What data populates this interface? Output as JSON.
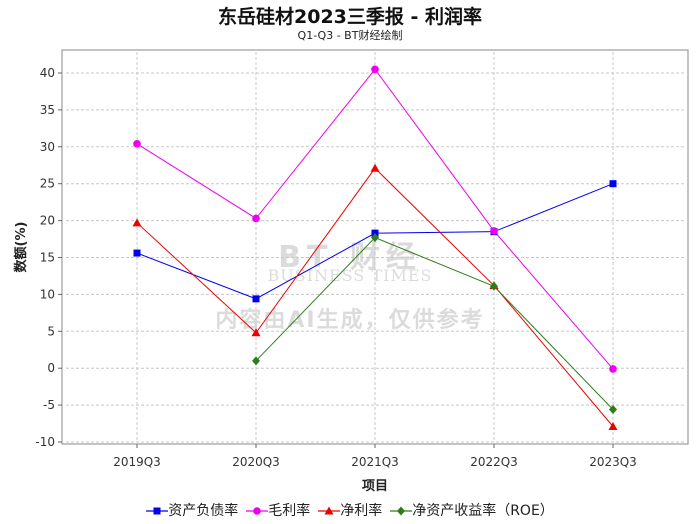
{
  "chart_data": {
    "type": "line",
    "title": "东岳硅材2023三季报 - 利润率",
    "subtitle": "Q1-Q3 - BT财经绘制",
    "xlabel": "项目",
    "ylabel": "数额(%)",
    "categories": [
      "2019Q3",
      "2020Q3",
      "2021Q3",
      "2022Q3",
      "2023Q3"
    ],
    "ylim": [
      -10,
      42
    ],
    "yticks": [
      -10,
      -5,
      0,
      5,
      10,
      15,
      20,
      25,
      30,
      35,
      40
    ],
    "grid": true,
    "legend_position": "bottom",
    "series": [
      {
        "name": "资产负债率",
        "color": "#0000ee",
        "marker": "square",
        "values": [
          15.6,
          9.4,
          18.3,
          18.5,
          25.0
        ]
      },
      {
        "name": "毛利率",
        "color": "#ee00ee",
        "marker": "circle",
        "values": [
          30.4,
          20.3,
          40.5,
          18.6,
          -0.1
        ]
      },
      {
        "name": "净利率",
        "color": "#ee0000",
        "marker": "triangle",
        "values": [
          19.7,
          4.8,
          27.1,
          11.2,
          -7.9
        ]
      },
      {
        "name": "净资产收益率（ROE）",
        "color": "#2e7d1a",
        "marker": "diamond",
        "values": [
          null,
          1.0,
          17.7,
          11.1,
          -5.6
        ]
      }
    ]
  },
  "watermark": {
    "brand": "BT 财经",
    "brand_en": "BUSINESS TIMES",
    "notice": "内容由AI生成，仅供参考"
  }
}
